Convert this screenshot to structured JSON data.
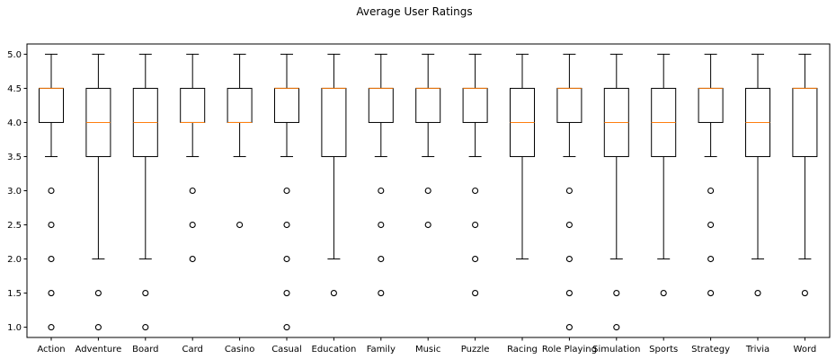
{
  "chart_data": {
    "type": "boxplot",
    "title": "Average User Ratings",
    "xlabel": "",
    "ylabel": "",
    "ylim": [
      0.85,
      5.15
    ],
    "yticks": [
      1.0,
      1.5,
      2.0,
      2.5,
      3.0,
      3.5,
      4.0,
      4.5,
      5.0
    ],
    "ytick_labels": [
      "1.0",
      "1.5",
      "2.0",
      "2.5",
      "3.0",
      "3.5",
      "4.0",
      "4.5",
      "5.0"
    ],
    "grid": false,
    "colors": {
      "box": "#000000",
      "median": "#ff7f0e",
      "flier": "#000000"
    },
    "categories": [
      "Action",
      "Adventure",
      "Board",
      "Card",
      "Casino",
      "Casual",
      "Education",
      "Family",
      "Music",
      "Puzzle",
      "Racing",
      "Role Playing",
      "Simulation",
      "Sports",
      "Strategy",
      "Trivia",
      "Word"
    ],
    "boxes": [
      {
        "whisker_low": 3.5,
        "q1": 4.0,
        "median": 4.5,
        "q3": 4.5,
        "whisker_high": 5.0,
        "fliers": [
          3.0,
          2.5,
          2.0,
          1.5,
          1.0
        ]
      },
      {
        "whisker_low": 2.0,
        "q1": 3.5,
        "median": 4.0,
        "q3": 4.5,
        "whisker_high": 5.0,
        "fliers": [
          1.5,
          1.0
        ]
      },
      {
        "whisker_low": 2.0,
        "q1": 3.5,
        "median": 4.0,
        "q3": 4.5,
        "whisker_high": 5.0,
        "fliers": [
          1.5,
          1.0
        ]
      },
      {
        "whisker_low": 3.5,
        "q1": 4.0,
        "median": 4.0,
        "q3": 4.5,
        "whisker_high": 5.0,
        "fliers": [
          3.0,
          2.5,
          2.0
        ]
      },
      {
        "whisker_low": 3.5,
        "q1": 4.0,
        "median": 4.0,
        "q3": 4.5,
        "whisker_high": 5.0,
        "fliers": [
          2.5
        ]
      },
      {
        "whisker_low": 3.5,
        "q1": 4.0,
        "median": 4.5,
        "q3": 4.5,
        "whisker_high": 5.0,
        "fliers": [
          3.0,
          2.5,
          2.0,
          1.5,
          1.0
        ]
      },
      {
        "whisker_low": 2.0,
        "q1": 3.5,
        "median": 4.5,
        "q3": 4.5,
        "whisker_high": 5.0,
        "fliers": [
          1.5
        ]
      },
      {
        "whisker_low": 3.5,
        "q1": 4.0,
        "median": 4.5,
        "q3": 4.5,
        "whisker_high": 5.0,
        "fliers": [
          3.0,
          2.5,
          2.0,
          1.5
        ]
      },
      {
        "whisker_low": 3.5,
        "q1": 4.0,
        "median": 4.5,
        "q3": 4.5,
        "whisker_high": 5.0,
        "fliers": [
          3.0,
          2.5
        ]
      },
      {
        "whisker_low": 3.5,
        "q1": 4.0,
        "median": 4.5,
        "q3": 4.5,
        "whisker_high": 5.0,
        "fliers": [
          3.0,
          2.5,
          2.0,
          1.5
        ]
      },
      {
        "whisker_low": 2.0,
        "q1": 3.5,
        "median": 4.0,
        "q3": 4.5,
        "whisker_high": 5.0,
        "fliers": []
      },
      {
        "whisker_low": 3.5,
        "q1": 4.0,
        "median": 4.5,
        "q3": 4.5,
        "whisker_high": 5.0,
        "fliers": [
          3.0,
          2.5,
          2.0,
          1.5,
          1.0
        ]
      },
      {
        "whisker_low": 2.0,
        "q1": 3.5,
        "median": 4.0,
        "q3": 4.5,
        "whisker_high": 5.0,
        "fliers": [
          1.5,
          1.0
        ]
      },
      {
        "whisker_low": 2.0,
        "q1": 3.5,
        "median": 4.0,
        "q3": 4.5,
        "whisker_high": 5.0,
        "fliers": [
          1.5
        ]
      },
      {
        "whisker_low": 3.5,
        "q1": 4.0,
        "median": 4.5,
        "q3": 4.5,
        "whisker_high": 5.0,
        "fliers": [
          3.0,
          2.5,
          2.0,
          1.5
        ]
      },
      {
        "whisker_low": 2.0,
        "q1": 3.5,
        "median": 4.0,
        "q3": 4.5,
        "whisker_high": 5.0,
        "fliers": [
          1.5
        ]
      },
      {
        "whisker_low": 2.0,
        "q1": 3.5,
        "median": 4.5,
        "q3": 4.5,
        "whisker_high": 5.0,
        "fliers": [
          1.5
        ]
      }
    ]
  }
}
